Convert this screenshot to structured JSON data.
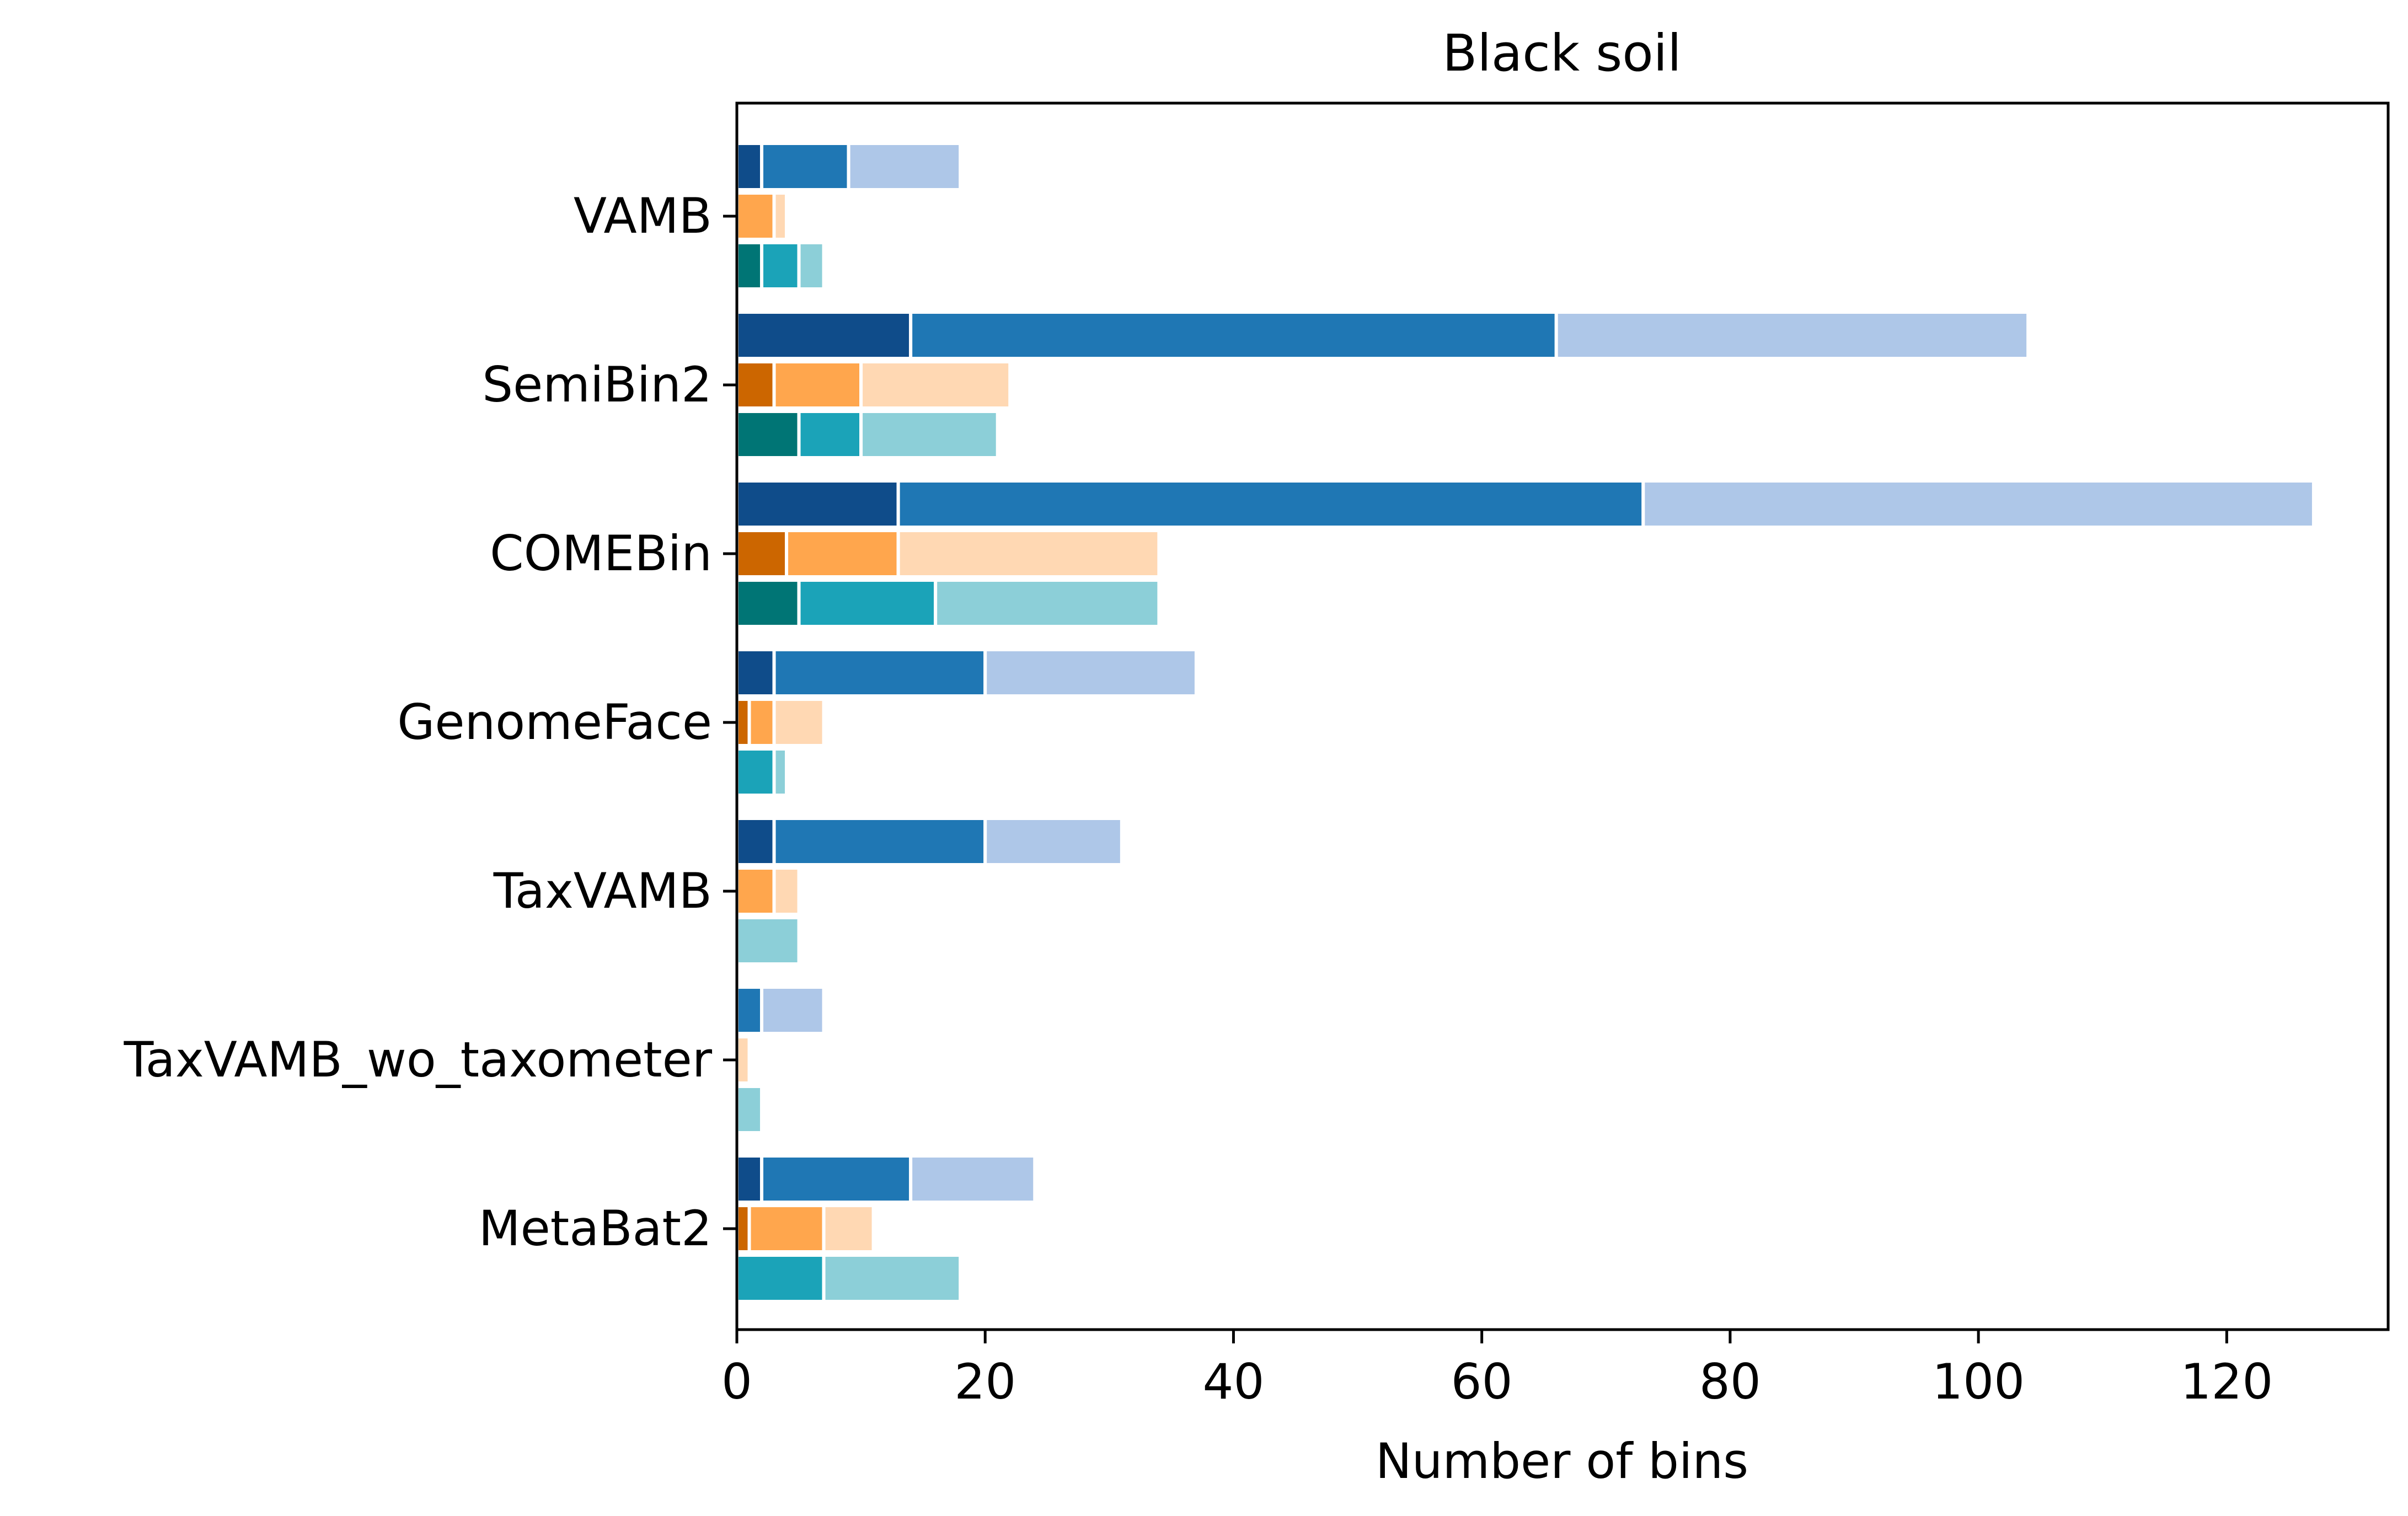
{
  "chart_data": {
    "type": "bar",
    "orientation": "horizontal",
    "stacking": "stacked-segments",
    "title": "Black soil",
    "xlabel": "Number of bins",
    "ylabel": "",
    "xlim": [
      0,
      133
    ],
    "x_ticks": [
      0,
      20,
      40,
      60,
      80,
      100,
      120
    ],
    "grid": false,
    "legend": "none",
    "categories": [
      "VAMB",
      "SemiBin2",
      "COMEBin",
      "GenomeFace",
      "TaxVAMB",
      "TaxVAMB_wo_taxometer",
      "MetaBat2"
    ],
    "series": [
      {
        "colors": [
          "#0f4c8a",
          "#1f77b4",
          "#aec7e8"
        ],
        "values": [
          [
            2,
            9,
            18
          ],
          [
            14,
            66,
            104
          ],
          [
            13,
            73,
            127
          ],
          [
            3,
            20,
            37
          ],
          [
            3,
            20,
            31
          ],
          [
            0,
            2,
            7
          ],
          [
            2,
            14,
            24
          ]
        ]
      },
      {
        "colors": [
          "#cc6600",
          "#ffa64d",
          "#ffd8b3"
        ],
        "values": [
          [
            0,
            3,
            4
          ],
          [
            3,
            10,
            22
          ],
          [
            4,
            13,
            34
          ],
          [
            1,
            3,
            7
          ],
          [
            0,
            3,
            5
          ],
          [
            0,
            0,
            1
          ],
          [
            1,
            7,
            11
          ]
        ]
      },
      {
        "colors": [
          "#007575",
          "#1ba3b8",
          "#8ccfd8"
        ],
        "values": [
          [
            2,
            5,
            7
          ],
          [
            5,
            10,
            21
          ],
          [
            5,
            16,
            34
          ],
          [
            0,
            3,
            4
          ],
          [
            0,
            0,
            5
          ],
          [
            0,
            0,
            2
          ],
          [
            0,
            7,
            18
          ]
        ]
      }
    ]
  }
}
